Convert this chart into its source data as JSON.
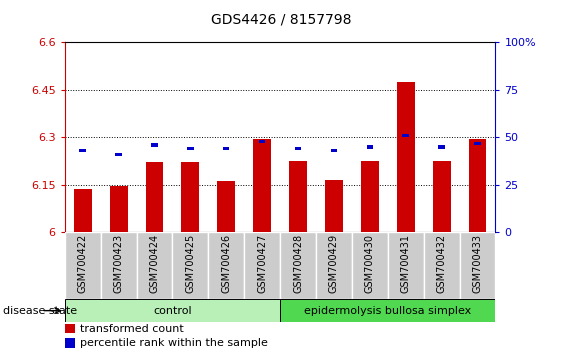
{
  "title": "GDS4426 / 8157798",
  "samples": [
    "GSM700422",
    "GSM700423",
    "GSM700424",
    "GSM700425",
    "GSM700426",
    "GSM700427",
    "GSM700428",
    "GSM700429",
    "GSM700430",
    "GSM700431",
    "GSM700432",
    "GSM700433"
  ],
  "red_values": [
    6.135,
    6.145,
    6.22,
    6.22,
    6.16,
    6.295,
    6.225,
    6.165,
    6.225,
    6.475,
    6.225,
    6.295
  ],
  "blue_values": [
    42,
    40,
    45,
    43,
    43,
    47,
    43,
    42,
    44,
    50,
    44,
    46
  ],
  "ymin": 6.0,
  "ymax": 6.6,
  "y2min": 0,
  "y2max": 100,
  "yticks": [
    6.0,
    6.15,
    6.3,
    6.45,
    6.6
  ],
  "y2ticks": [
    0,
    25,
    50,
    75,
    100
  ],
  "ytick_labels": [
    "6",
    "6.15",
    "6.3",
    "6.45",
    "6.6"
  ],
  "y2tick_labels": [
    "0",
    "25",
    "50",
    "75",
    "100%"
  ],
  "red_color": "#cc0000",
  "blue_color": "#0000cc",
  "bar_width": 0.5,
  "blue_bar_width": 0.18,
  "blue_bar_height": 0.01,
  "control_label": "control",
  "disease_label": "epidermolysis bullosa simplex",
  "control_count": 6,
  "disease_count": 6,
  "legend_red": "transformed count",
  "legend_blue": "percentile rank within the sample",
  "disease_state_label": "disease state",
  "light_green": "#b8f0b8",
  "medium_green": "#50d850",
  "panel_bg": "#cccccc",
  "panel_sep_color": "#ffffff",
  "title_fontsize": 10,
  "label_fontsize": 7,
  "legend_fontsize": 8,
  "disease_fontsize": 8
}
